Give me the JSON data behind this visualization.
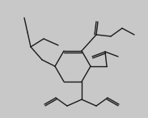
{
  "bg_color": "#c8c8c8",
  "line_color": "#1a1a1a",
  "lw": 1.0,
  "fig_width": 1.83,
  "fig_height": 1.46,
  "dpi": 100
}
